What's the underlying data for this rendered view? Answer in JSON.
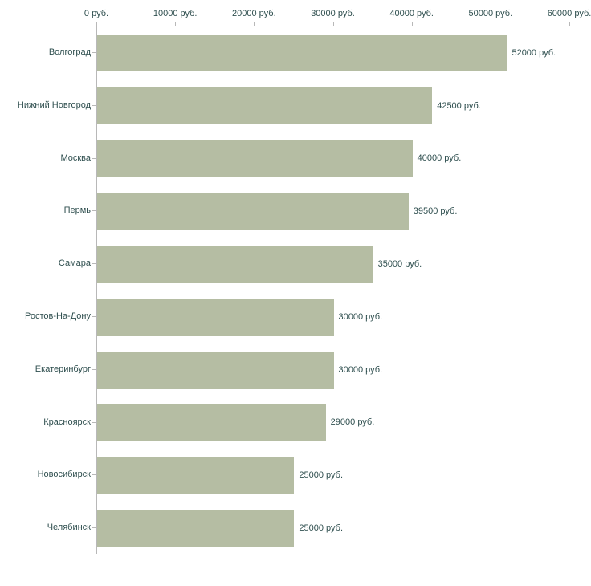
{
  "chart_data": {
    "type": "bar",
    "orientation": "horizontal",
    "title": "",
    "xlabel": "",
    "ylabel": "",
    "unit": "руб.",
    "xlim": [
      0,
      60000
    ],
    "x_tick_values": [
      0,
      10000,
      20000,
      30000,
      40000,
      50000,
      60000
    ],
    "x_tick_labels": [
      "0 руб.",
      "10000 руб.",
      "20000 руб.",
      "30000 руб.",
      "40000 руб.",
      "50000 руб.",
      "60000 руб."
    ],
    "categories": [
      "Волгоград",
      "Нижний Новгород",
      "Москва",
      "Пермь",
      "Самара",
      "Ростов-На-Дону",
      "Екатеринбург",
      "Красноярск",
      "Новосибирск",
      "Челябинск"
    ],
    "values": [
      52000,
      42500,
      40000,
      39500,
      35000,
      30000,
      30000,
      29000,
      25000,
      25000
    ],
    "value_labels": [
      "52000 руб.",
      "42500 руб.",
      "40000 руб.",
      "39500 руб.",
      "35000 руб.",
      "30000 руб.",
      "30000 руб.",
      "29000 руб.",
      "25000 руб.",
      "25000 руб."
    ],
    "grid": false,
    "legend": "none",
    "bar_color": "#b5bda3",
    "text_color": "#2f4f4f",
    "axis_color": "#b8b8b8"
  }
}
